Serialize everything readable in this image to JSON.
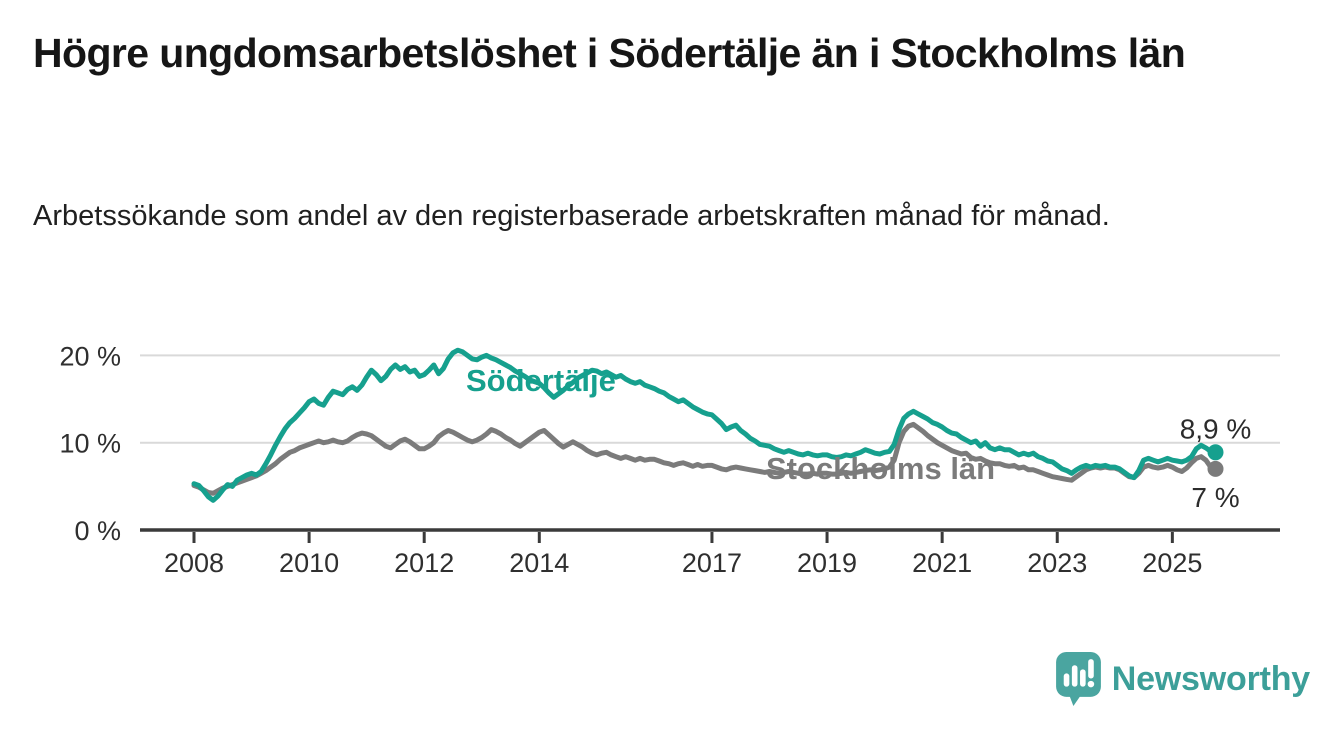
{
  "header": {
    "title": "Högre ungdomsarbetslöshet i Södertälje än i Stockholms län",
    "subtitle": "Arbetssökande som andel av den registerbaserade arbetskraften månad för månad."
  },
  "chart_data": {
    "type": "line",
    "unit": "%",
    "frequency": "monthly",
    "x_start": {
      "year": 2008,
      "month": 1
    },
    "x_end": {
      "year": 2025,
      "month": 10
    },
    "ylim": [
      0,
      21.5
    ],
    "grid": "horizontal",
    "legend_position": "inline-labels",
    "y_ticks": [
      {
        "value": 20,
        "label": "20 %"
      },
      {
        "value": 10,
        "label": "10 %"
      },
      {
        "value": 0,
        "label": "0 %"
      }
    ],
    "x_ticks": [
      {
        "year": 2008,
        "label": "2008"
      },
      {
        "year": 2010,
        "label": "2010"
      },
      {
        "year": 2012,
        "label": "2012"
      },
      {
        "year": 2014,
        "label": "2014"
      },
      {
        "year": 2017,
        "label": "2017"
      },
      {
        "year": 2019,
        "label": "2019"
      },
      {
        "year": 2021,
        "label": "2021"
      },
      {
        "year": 2023,
        "label": "2023"
      },
      {
        "year": 2025,
        "label": "2025"
      }
    ],
    "series": [
      {
        "name": "Södertälje",
        "slug": "sodertalje",
        "color": "#16a08e",
        "end_label": "8,9 %",
        "last_value": 8.9,
        "values": [
          5.3,
          5.1,
          4.5,
          3.8,
          3.4,
          3.9,
          4.6,
          5.2,
          5.0,
          5.7,
          6.0,
          6.3,
          6.5,
          6.3,
          6.7,
          7.6,
          8.6,
          9.7,
          10.7,
          11.6,
          12.3,
          12.8,
          13.4,
          14.0,
          14.7,
          15.0,
          14.5,
          14.3,
          15.2,
          15.9,
          15.7,
          15.5,
          16.1,
          16.4,
          16.0,
          16.6,
          17.5,
          18.3,
          17.8,
          17.1,
          17.6,
          18.4,
          18.9,
          18.4,
          18.7,
          18.1,
          18.3,
          17.6,
          17.8,
          18.3,
          18.9,
          17.9,
          18.5,
          19.6,
          20.3,
          20.6,
          20.4,
          20.0,
          19.6,
          19.5,
          19.8,
          20.0,
          19.7,
          19.5,
          19.2,
          18.9,
          18.6,
          18.2,
          17.9,
          17.6,
          17.2,
          17.0,
          16.8,
          16.3,
          15.7,
          15.2,
          15.6,
          16.0,
          16.5,
          16.9,
          17.4,
          17.7,
          18.0,
          18.3,
          18.2,
          17.9,
          18.1,
          17.8,
          17.5,
          17.7,
          17.3,
          17.0,
          16.8,
          17.0,
          16.6,
          16.4,
          16.2,
          15.9,
          15.7,
          15.3,
          15.0,
          14.7,
          14.9,
          14.5,
          14.1,
          13.8,
          13.5,
          13.3,
          13.2,
          12.7,
          12.2,
          11.5,
          11.8,
          12.0,
          11.4,
          11.0,
          10.5,
          10.2,
          9.8,
          9.7,
          9.6,
          9.3,
          9.1,
          8.9,
          9.1,
          8.9,
          8.7,
          8.6,
          8.8,
          8.6,
          8.5,
          8.6,
          8.6,
          8.4,
          8.3,
          8.4,
          8.6,
          8.5,
          8.7,
          8.9,
          9.2,
          9.0,
          8.8,
          8.7,
          8.9,
          9.0,
          9.8,
          11.5,
          12.8,
          13.3,
          13.6,
          13.3,
          13.0,
          12.7,
          12.3,
          12.1,
          11.8,
          11.4,
          11.1,
          11.0,
          10.6,
          10.3,
          10.0,
          10.2,
          9.6,
          10.0,
          9.4,
          9.2,
          9.4,
          9.2,
          9.2,
          8.9,
          8.6,
          8.8,
          8.6,
          8.8,
          8.4,
          8.2,
          7.9,
          7.8,
          7.4,
          7.0,
          6.8,
          6.5,
          6.9,
          7.2,
          7.4,
          7.2,
          7.4,
          7.3,
          7.4,
          7.2,
          7.2,
          7.0,
          6.6,
          6.2,
          6.0,
          6.8,
          8.0,
          8.2,
          8.0,
          7.8,
          8.0,
          8.2,
          8.0,
          7.9,
          7.8,
          8.0,
          8.4,
          9.3,
          9.7,
          9.4,
          9.0,
          8.9
        ]
      },
      {
        "name": "Stockholms län",
        "slug": "stockholms-lan",
        "color": "#7b7b7b",
        "end_label": "7 %",
        "last_value": 7.0,
        "values": [
          5.1,
          4.9,
          4.6,
          4.3,
          4.2,
          4.5,
          4.8,
          5.0,
          5.2,
          5.4,
          5.6,
          5.8,
          6.0,
          6.2,
          6.5,
          6.8,
          7.2,
          7.6,
          8.1,
          8.5,
          8.9,
          9.1,
          9.4,
          9.6,
          9.8,
          10.0,
          10.2,
          10.0,
          10.1,
          10.3,
          10.1,
          10.0,
          10.2,
          10.6,
          10.9,
          11.1,
          11.0,
          10.8,
          10.4,
          10.0,
          9.6,
          9.4,
          9.8,
          10.2,
          10.4,
          10.1,
          9.7,
          9.3,
          9.3,
          9.6,
          10.0,
          10.7,
          11.1,
          11.4,
          11.2,
          10.9,
          10.6,
          10.3,
          10.1,
          10.3,
          10.6,
          11.0,
          11.5,
          11.3,
          11.0,
          10.6,
          10.3,
          9.9,
          9.6,
          10.0,
          10.4,
          10.8,
          11.2,
          11.4,
          10.9,
          10.4,
          9.9,
          9.5,
          9.8,
          10.1,
          9.8,
          9.5,
          9.1,
          8.8,
          8.6,
          8.8,
          8.9,
          8.6,
          8.4,
          8.2,
          8.4,
          8.2,
          8.0,
          8.2,
          8.0,
          8.1,
          8.1,
          7.9,
          7.7,
          7.6,
          7.4,
          7.6,
          7.7,
          7.5,
          7.3,
          7.5,
          7.3,
          7.4,
          7.4,
          7.2,
          7.0,
          6.9,
          7.1,
          7.2,
          7.1,
          7.0,
          6.9,
          6.8,
          6.7,
          6.6,
          6.7,
          6.6,
          6.5,
          6.6,
          6.7,
          6.6,
          6.5,
          6.4,
          6.4,
          6.5,
          6.4,
          6.5,
          6.5,
          6.4,
          6.4,
          6.5,
          6.6,
          6.5,
          6.6,
          6.7,
          6.8,
          6.9,
          6.8,
          6.9,
          7.0,
          7.2,
          8.0,
          10.0,
          11.3,
          11.9,
          12.1,
          11.7,
          11.3,
          10.8,
          10.4,
          10.0,
          9.7,
          9.4,
          9.1,
          8.9,
          8.7,
          8.8,
          8.3,
          8.1,
          8.2,
          7.9,
          7.7,
          7.6,
          7.6,
          7.4,
          7.3,
          7.4,
          7.1,
          7.2,
          6.9,
          6.9,
          6.7,
          6.5,
          6.3,
          6.1,
          6.0,
          5.9,
          5.8,
          5.7,
          6.1,
          6.5,
          6.9,
          7.1,
          7.2,
          7.1,
          7.2,
          7.1,
          7.1,
          6.9,
          6.5,
          6.1,
          6.0,
          6.5,
          7.2,
          7.4,
          7.2,
          7.1,
          7.2,
          7.4,
          7.2,
          6.9,
          6.7,
          7.1,
          7.7,
          8.2,
          8.4,
          8.0,
          7.2,
          7.0
        ]
      }
    ]
  },
  "footer": {
    "brand": "Newsworthy",
    "brand_color": "#3c9f99",
    "logo_color": "#4aa5a0",
    "logo_icon": "bar-chart-speech-bubble"
  }
}
